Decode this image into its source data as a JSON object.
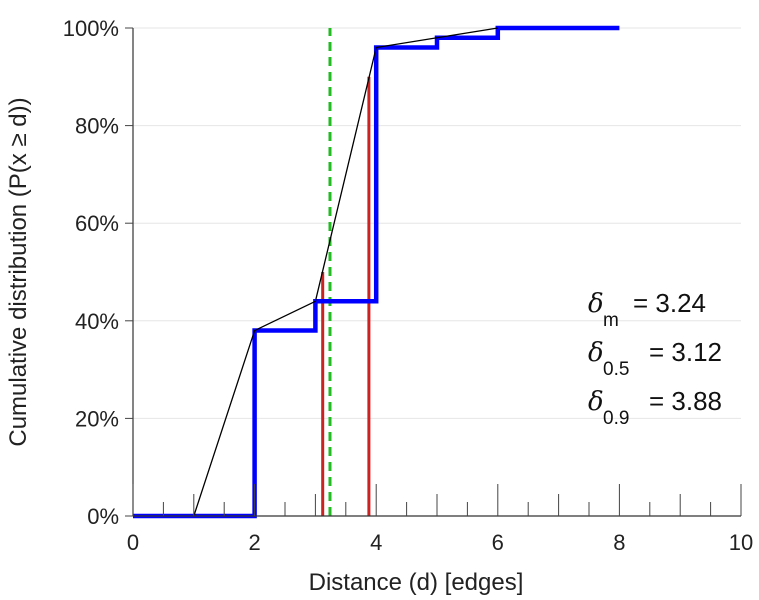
{
  "chart_data": {
    "type": "line",
    "title": "",
    "xlabel": "Distance (d) [edges]",
    "ylabel": "Cumulative distribution (P(x ≥ d))",
    "xlim": [
      0,
      10
    ],
    "ylim": [
      0,
      1
    ],
    "x_ticks": [
      "0",
      "2",
      "4",
      "6",
      "8",
      "10"
    ],
    "x_tick_values": [
      0,
      2,
      4,
      6,
      8,
      10
    ],
    "y_ticks": [
      "0%",
      "20%",
      "40%",
      "60%",
      "80%",
      "100%"
    ],
    "y_tick_values": [
      0,
      0.2,
      0.4,
      0.6,
      0.8,
      1.0
    ],
    "grid": "horizontal",
    "series": [
      {
        "kind": "step",
        "color": "#0000ff",
        "x": [
          0,
          1,
          2,
          3,
          4,
          5,
          6,
          7,
          8
        ],
        "y": [
          0,
          0,
          0.38,
          0.44,
          0.96,
          0.98,
          1.0,
          1.0,
          1.0
        ]
      },
      {
        "kind": "line",
        "color": "#000000",
        "x": [
          1,
          2,
          3,
          4,
          5,
          6
        ],
        "y": [
          0,
          0.38,
          0.44,
          0.96,
          0.98,
          1.0
        ]
      }
    ],
    "vertical_markers": [
      {
        "x": 3.12,
        "y": 0.5,
        "color": "#cc2222",
        "style": "solid"
      },
      {
        "x": 3.88,
        "y": 0.9,
        "color": "#cc2222",
        "style": "solid"
      },
      {
        "x": 3.24,
        "y": 1.0,
        "color": "#22bb22",
        "style": "dashed"
      }
    ],
    "annotations": [
      {
        "symbol": "δ",
        "sub": "m",
        "text": "= 3.24"
      },
      {
        "symbol": "δ",
        "sub": "0.5",
        "text": "= 3.12"
      },
      {
        "symbol": "δ",
        "sub": "0.9",
        "text": "= 3.88"
      }
    ]
  }
}
